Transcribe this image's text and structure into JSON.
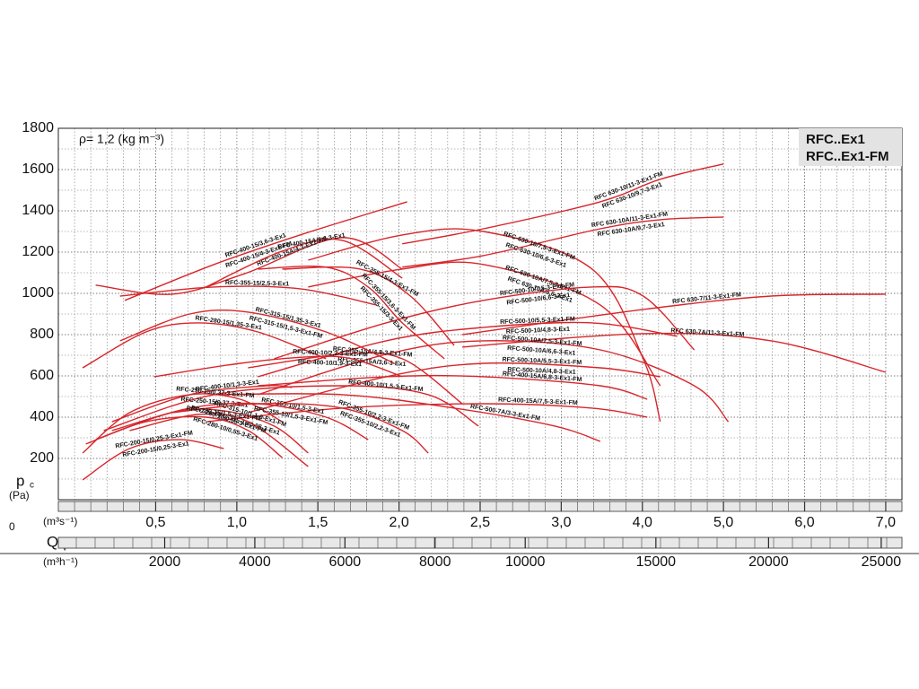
{
  "chart_data": {
    "type": "line",
    "density_note": "ρ= 1,2 (kg m⁻³)",
    "legend_lines": [
      "RFC..Ex1",
      "RFC..Ex1-FM"
    ],
    "y_label": {
      "symbol": "p",
      "subscript": "c",
      "unit": "(Pa)"
    },
    "x_label": {
      "symbol": "Q",
      "subscript": "v",
      "unit": "(m³s⁻¹)",
      "unit2": "(m³h⁻¹)",
      "origin": "0"
    },
    "ylim": [
      0,
      1800
    ],
    "yticks": [
      200,
      400,
      600,
      800,
      1000,
      1200,
      1400,
      1600,
      1800
    ],
    "xlim": [
      -0.1,
      7.2
    ],
    "xticks": [
      {
        "value": 0.5,
        "label": "0,5"
      },
      {
        "value": 1.0,
        "label": "1,0"
      },
      {
        "value": 1.5,
        "label": "1,5"
      },
      {
        "value": 2.0,
        "label": "2,0"
      },
      {
        "value": 2.5,
        "label": "2,5"
      },
      {
        "value": 3.0,
        "label": "3,0"
      },
      {
        "value": 4.0,
        "label": "4,0"
      },
      {
        "value": 5.0,
        "label": "5,0"
      },
      {
        "value": 6.0,
        "label": "6,0"
      },
      {
        "value": 7.0,
        "label": "7,0"
      }
    ],
    "x2lim": [
      -360,
      25920
    ],
    "x2ticks": [
      2000,
      4000,
      6000,
      8000,
      10000,
      15000,
      20000,
      25000
    ],
    "grid": true,
    "series": [
      {
        "labels": [
          "RFC 630-10/11-3-Ex1-FM",
          "RFC 630-10/9,7-3-Ex1"
        ],
        "color": "#d7262b",
        "x": [
          2.02,
          2.52,
          3.48,
          4.22,
          5.0
        ],
        "values": [
          1240,
          1313,
          1444,
          1553,
          1627
        ]
      },
      {
        "labels": [
          "RFC 630-10A/11-3-Ex1-FM",
          "RFC 630-10A/9,7-3-Ex1"
        ],
        "color": "#d7262b",
        "x": [
          2.02,
          2.52,
          3.48,
          4.22,
          5.0
        ],
        "values": [
          1127,
          1183,
          1313,
          1357,
          1370
        ]
      },
      {
        "labels": [
          "RFC-630-10/7,5-3-Ex1-FM",
          "RFC-630-10/6,6-3-Ex1"
        ],
        "color": "#d7262b",
        "x": [
          1.44,
          2.02,
          2.52,
          3.38,
          4.01,
          4.22
        ],
        "values": [
          1161,
          1283,
          1300,
          1118,
          683,
          379
        ]
      },
      {
        "labels": [
          "RFC-630-10A/7,5-3-Ex1-FM",
          "RFC 630-10A/6,6-3-Ex1"
        ],
        "color": "#d7262b",
        "x": [
          1.44,
          2.02,
          2.52,
          3.48,
          4.22
        ],
        "values": [
          1031,
          1118,
          1140,
          944,
          552
        ]
      },
      {
        "labels": [
          "RFC 630-7/11-3-Ex1-FM"
        ],
        "color": "#d7262b",
        "x": [
          2.39,
          4.01,
          5.59,
          7.0
        ],
        "values": [
          800,
          922,
          987,
          996
        ]
      },
      {
        "labels": [
          "RFC 630-7A/11-3-Ex1-FM"
        ],
        "color": "#d7262b",
        "x": [
          2.39,
          4.01,
          5.59,
          7.0
        ],
        "values": [
          740,
          805,
          770,
          618
        ]
      },
      {
        "labels": [
          "RFC-500-10/7,5-3-Ex1-FM",
          "RFC-500-10/6,6-3-Ex1"
        ],
        "color": "#d7262b",
        "x": [
          1.23,
          1.92,
          2.52,
          3.38,
          4.01,
          4.64
        ],
        "values": [
          683,
          857,
          966,
          1031,
          987,
          726
        ]
      },
      {
        "labels": [
          "RFC-500-10/5,5-3-Ex1-FM",
          "RFC-500-10/4,8-3-Ex1"
        ],
        "color": "#d7262b",
        "x": [
          1.13,
          1.92,
          2.52,
          3.38,
          4.43
        ],
        "values": [
          596,
          770,
          835,
          857,
          792
        ]
      },
      {
        "labels": [
          "RFC-500-10A/7,5-3-Ex1-FM",
          "RFC-500-10A/6,6-3-Ex1"
        ],
        "color": "#d7262b",
        "x": [
          1.13,
          1.92,
          2.52,
          3.48,
          4.64,
          5.06
        ],
        "values": [
          509,
          705,
          770,
          726,
          552,
          378
        ]
      },
      {
        "labels": [
          "RFC-500-10A/5,5-3-Ex1-FM",
          "RFC-500-10A/4,8-3-Ex1"
        ],
        "color": "#d7262b",
        "x": [
          1.07,
          1.92,
          2.52,
          3.48,
          4.22
        ],
        "values": [
          422,
          596,
          661,
          639,
          596
        ]
      },
      {
        "labels": [
          "RFC-500-7A/3-3-Ex1-FM"
        ],
        "color": "#d7262b",
        "x": [
          0.86,
          1.65,
          2.34,
          2.96,
          3.48
        ],
        "values": [
          509,
          509,
          444,
          357,
          283
        ]
      },
      {
        "labels": [
          "RFC-400-15A/6,8-3-Ex1-FM"
        ],
        "color": "#d7262b",
        "x": [
          1.13,
          1.92,
          2.52,
          3.48,
          4.06
        ],
        "values": [
          552,
          596,
          596,
          552,
          487
        ]
      },
      {
        "labels": [
          "RFC-400-15A/7,5-3-Ex1-FM"
        ],
        "color": "#d7262b",
        "x": [
          0.81,
          1.65,
          2.52,
          3.38,
          4.06
        ],
        "values": [
          378,
          444,
          465,
          444,
          400
        ]
      },
      {
        "labels": [
          "RFC-400-15/3,6-3-Ex1",
          "RFC-400-15/4-3-Ex1-FM"
        ],
        "color": "#d7262b",
        "x": [
          0.31,
          0.86,
          1.39,
          2.05
        ],
        "values": [
          966,
          1140,
          1283,
          1444
        ]
      },
      {
        "labels": [
          "RFC-400-15A/4-3-Ex1-FM"
        ],
        "color": "#d7262b",
        "x": [
          0.13,
          0.6,
          1.05,
          1.65,
          2.02
        ],
        "values": [
          1040,
          996,
          1096,
          1270,
          1118
        ]
      },
      {
        "labels": [
          "RFC-400-15A/3,6-3-Ex1"
        ],
        "color": "#d7262b",
        "x": [
          0.81,
          1.28,
          1.65,
          2.02
        ],
        "values": [
          1031,
          1205,
          1257,
          1074
        ]
      },
      {
        "labels": [
          "RFC-355-15/2,5-3-Ex1"
        ],
        "color": "#d7262b",
        "x": [
          0.28,
          0.86,
          1.39,
          1.86
        ],
        "values": [
          987,
          1031,
          1022,
          944
        ]
      },
      {
        "labels": [
          "RFC-355-15/3,6-3-Ex1-FM",
          "RFC-355-15/3-3-Ex1"
        ],
        "color": "#d7262b",
        "x": [
          1.13,
          1.55,
          1.81,
          2.02,
          2.28
        ],
        "values": [
          1118,
          1127,
          1031,
          857,
          683
        ]
      },
      {
        "labels": [
          "RFC-355-15/4-3-Ex1-FM"
        ],
        "color": "#d7262b",
        "x": [
          1.28,
          1.76,
          2.07,
          2.34
        ],
        "values": [
          1118,
          1118,
          987,
          748
        ]
      },
      {
        "labels": [
          "RFC-355-15A/4,8-3-Ex1-FM",
          "RFC-355-15A/3,6-3-Ex1"
        ],
        "color": "#d7262b",
        "x": [
          1.07,
          1.65,
          2.02,
          2.39
        ],
        "values": [
          639,
          705,
          683,
          465
        ]
      },
      {
        "labels": [
          "RFC-315-15/1,35-3-Ex1",
          "RFC-315-15/1,5-3-Ex1-FM"
        ],
        "color": "#d7262b",
        "x": [
          0.28,
          0.71,
          1.07,
          1.55,
          1.97
        ],
        "values": [
          770,
          900,
          909,
          813,
          661
        ]
      },
      {
        "labels": [
          "RFC-280-15/1,35-3-Ex1"
        ],
        "color": "#d7262b",
        "x": [
          0.05,
          0.44,
          0.76,
          1.13,
          1.55
        ],
        "values": [
          639,
          813,
          857,
          813,
          683
        ]
      },
      {
        "labels": [
          "RFC-400-10/2,2-3-Ex1-FM",
          "RFC-400-10/1,9-3-Ex1"
        ],
        "color": "#d7262b",
        "x": [
          0.49,
          1.02,
          1.44,
          1.71,
          2.02
        ],
        "values": [
          596,
          661,
          692,
          683,
          596
        ]
      },
      {
        "labels": [
          "RFC-400-10/1,3-3-Ex1"
        ],
        "color": "#d7262b",
        "x": [
          0.23,
          0.71,
          1.18,
          1.34
        ],
        "values": [
          378,
          509,
          552,
          544
        ]
      },
      {
        "labels": [
          "RFC-400-10/1,5-3-Ex1-FM"
        ],
        "color": "#d7262b",
        "x": [
          0.18,
          0.86,
          1.65,
          2.18,
          2.49
        ],
        "values": [
          335,
          509,
          552,
          509,
          357
        ]
      },
      {
        "labels": [
          "RFC-250-15/0,37-3-Ex1-FM",
          "RFC-250-15/0,37-3-Ex1"
        ],
        "color": "#d7262b",
        "x": [
          0.05,
          0.34,
          0.71,
          1.02,
          1.28
        ],
        "values": [
          226,
          422,
          509,
          487,
          378
        ]
      },
      {
        "labels": [
          "RFC-355-10/1,5-3-Ex1",
          "RFC-355-10/1,5-3-Ex1-FM"
        ],
        "color": "#d7262b",
        "x": [
          0.23,
          0.71,
          1.13,
          1.55,
          1.81
        ],
        "values": [
          335,
          444,
          465,
          400,
          291
        ]
      },
      {
        "labels": [
          "RFC-355-10/2,2-3-Ex1-FM",
          "RFC-355-10/2,2-3-Ex1"
        ],
        "color": "#d7262b",
        "x": [
          0.6,
          1.13,
          1.65,
          2.02,
          2.18
        ],
        "values": [
          422,
          465,
          444,
          335,
          226
        ]
      },
      {
        "labels": [
          "RFC-315-10/1,1-3-Ex1-FM",
          "RFC-315-10/0,95-3-Ex1"
        ],
        "color": "#d7262b",
        "x": [
          0.13,
          0.6,
          0.92,
          1.23,
          1.44
        ],
        "values": [
          291,
          422,
          431,
          357,
          226
        ]
      },
      {
        "labels": [
          "RFC-280-15/1,5-3-Ex1-FM"
        ],
        "color": "#d7262b",
        "x": [
          0.34,
          0.76,
          1.07,
          1.44
        ],
        "values": [
          335,
          413,
          378,
          161
        ]
      },
      {
        "labels": [
          "RFC-200-15/0,25-3-Ex1-FM",
          "RFC-200-15/0,25-3-Ex1"
        ],
        "color": "#d7262b",
        "x": [
          0.05,
          0.34,
          0.65,
          0.92
        ],
        "values": [
          96,
          248,
          291,
          248
        ]
      },
      {
        "labels": [
          "RFC-280-10/0,55-3-Ex1-FM",
          "RFC-280-10/0,55-3-Ex1"
        ],
        "color": "#d7262b",
        "x": [
          0.07,
          0.44,
          0.81,
          1.07,
          1.28
        ],
        "values": [
          270,
          378,
          400,
          335,
          204
        ]
      }
    ]
  }
}
